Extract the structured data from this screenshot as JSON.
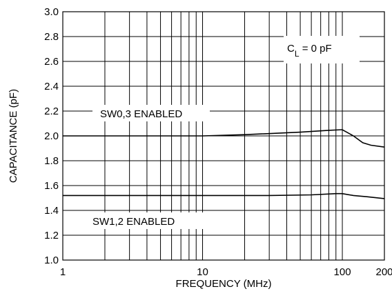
{
  "chart_data": {
    "type": "line",
    "x_scale": "log",
    "xlim": [
      1,
      200
    ],
    "ylim": [
      1.0,
      3.0
    ],
    "xlabel": "FREQUENCY (MHz)",
    "ylabel": "CAPACITANCE (pF)",
    "x_ticks": [
      {
        "value": 1,
        "label": "1"
      },
      {
        "value": 10,
        "label": "10"
      },
      {
        "value": 100,
        "label": "100"
      },
      {
        "value": 200,
        "label": "200"
      }
    ],
    "y_ticks": [
      {
        "value": 1.0,
        "label": "1.0"
      },
      {
        "value": 1.2,
        "label": "1.2"
      },
      {
        "value": 1.4,
        "label": "1.4"
      },
      {
        "value": 1.6,
        "label": "1.6"
      },
      {
        "value": 1.8,
        "label": "1.8"
      },
      {
        "value": 2.0,
        "label": "2.0"
      },
      {
        "value": 2.2,
        "label": "2.2"
      },
      {
        "value": 2.4,
        "label": "2.4"
      },
      {
        "value": 2.6,
        "label": "2.6"
      },
      {
        "value": 2.8,
        "label": "2.8"
      },
      {
        "value": 3.0,
        "label": "3.0"
      }
    ],
    "x_gridlines": [
      1,
      2,
      3,
      4,
      5,
      6,
      7,
      8,
      9,
      10,
      20,
      30,
      40,
      50,
      60,
      70,
      80,
      90,
      100,
      200
    ],
    "y_gridlines": [
      1.0,
      1.2,
      1.4,
      1.6,
      1.8,
      2.0,
      2.2,
      2.4,
      2.6,
      2.8,
      3.0
    ],
    "grid": true,
    "series": [
      {
        "name": "SW0,3 ENABLED",
        "points": [
          [
            1,
            2.0
          ],
          [
            10,
            2.0
          ],
          [
            20,
            2.01
          ],
          [
            50,
            2.03
          ],
          [
            80,
            2.045
          ],
          [
            100,
            2.05
          ],
          [
            120,
            2.0
          ],
          [
            140,
            1.945
          ],
          [
            160,
            1.925
          ],
          [
            200,
            1.91
          ]
        ]
      },
      {
        "name": "SW1,2 ENABLED",
        "points": [
          [
            1,
            1.52
          ],
          [
            10,
            1.52
          ],
          [
            30,
            1.52
          ],
          [
            60,
            1.525
          ],
          [
            90,
            1.535
          ],
          [
            100,
            1.535
          ],
          [
            120,
            1.52
          ],
          [
            150,
            1.51
          ],
          [
            200,
            1.495
          ]
        ]
      }
    ],
    "annotations": {
      "cl_main": "C",
      "cl_sub": "L",
      "cl_rest": " = 0 pF"
    }
  }
}
